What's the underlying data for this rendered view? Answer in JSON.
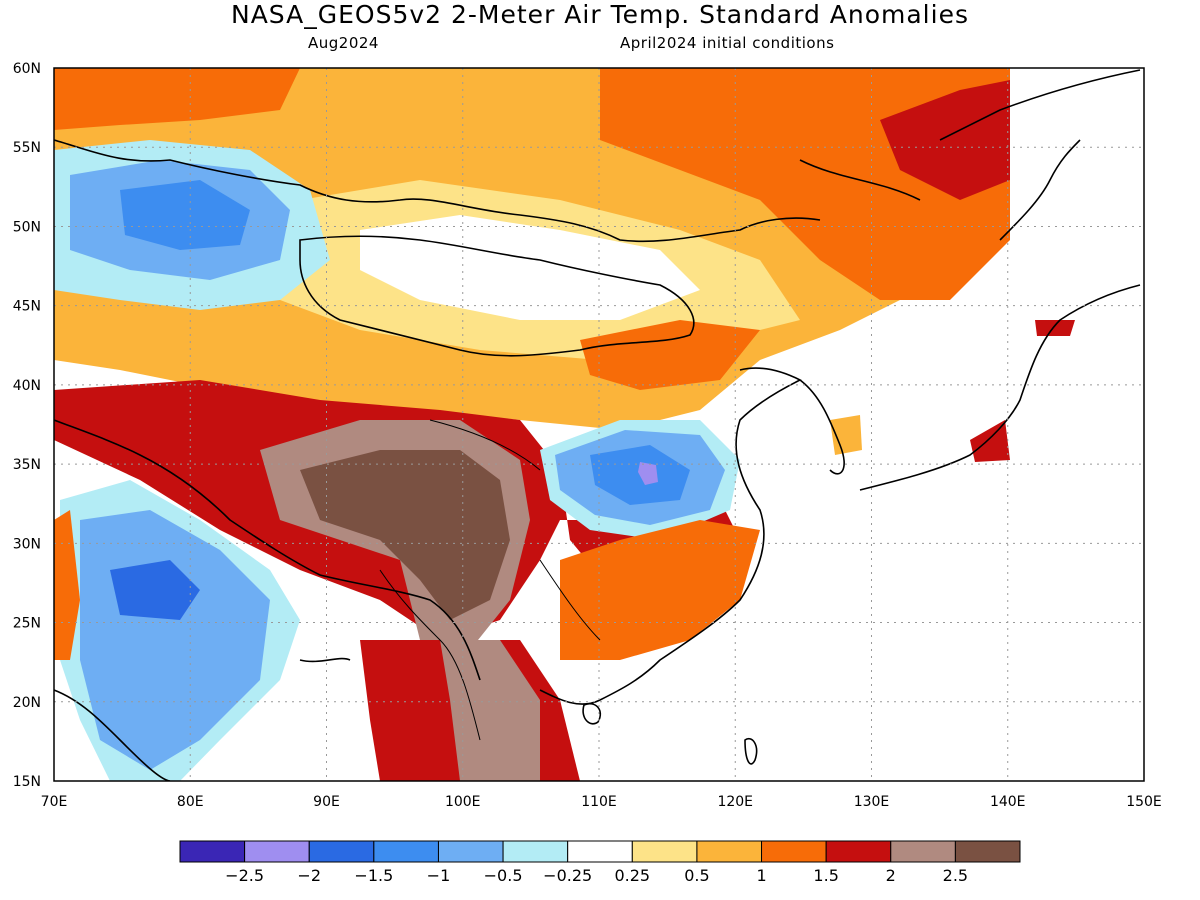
{
  "header": {
    "title": "NASA_GEOS5v2 2-Meter Air Temp. Standard Anomalies",
    "valid_month": "Aug2024",
    "init": "April2024 initial conditions"
  },
  "axes": {
    "lon_ticks": [
      "70E",
      "80E",
      "90E",
      "100E",
      "110E",
      "120E",
      "130E",
      "140E",
      "150E"
    ],
    "lat_ticks": [
      "15N",
      "20N",
      "25N",
      "30N",
      "35N",
      "40N",
      "45N",
      "50N",
      "55N",
      "60N"
    ]
  },
  "colorbar": {
    "colors": [
      "#3a26b5",
      "#9f8ef0",
      "#2a6ae3",
      "#3d8df0",
      "#6eaef3",
      "#b3ecf5",
      "#ffffff",
      "#fde388",
      "#fbb43a",
      "#f76c08",
      "#c50f0f",
      "#b08a80",
      "#7a5142"
    ],
    "labels": [
      "-2.5",
      "-2",
      "-1.5",
      "-1",
      "-0.5",
      "-0.25",
      "0.25",
      "0.5",
      "1",
      "1.5",
      "2",
      "2.5"
    ]
  },
  "map_colors": {
    "coastline": "#000000",
    "gridline": "#999999"
  }
}
